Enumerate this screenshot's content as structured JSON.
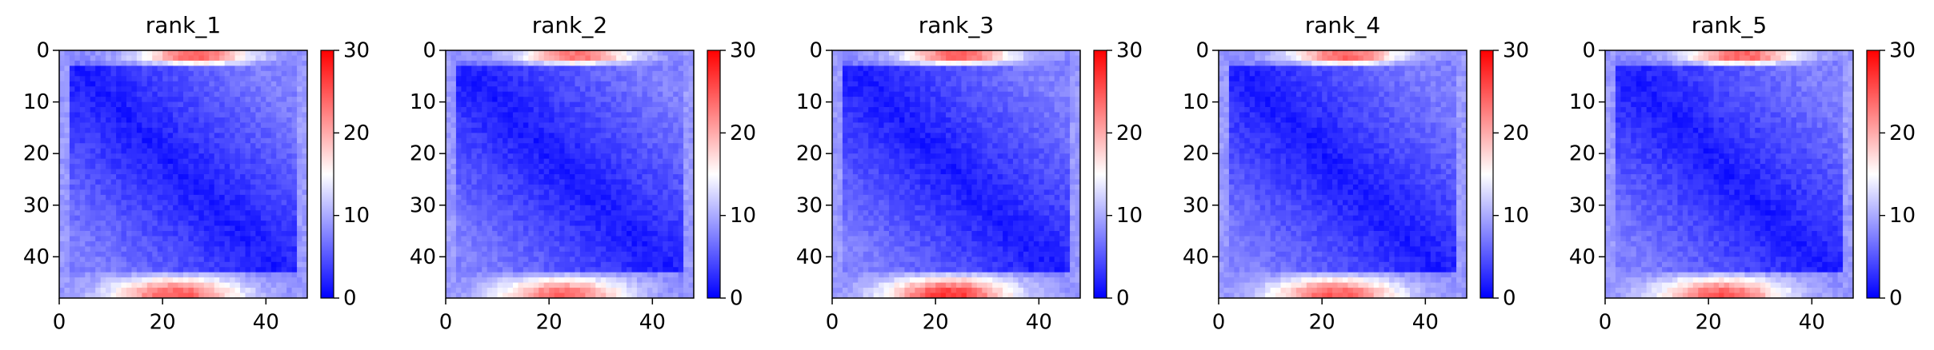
{
  "figure": {
    "background": "#ffffff"
  },
  "chart_data": [
    {
      "type": "heatmap",
      "title": "rank_1",
      "xlabel": "",
      "ylabel": "",
      "grid_size": 48,
      "x_ticks": [
        0,
        20,
        40
      ],
      "y_ticks": [
        0,
        10,
        20,
        30,
        40
      ],
      "xlim": [
        0,
        48
      ],
      "ylim": [
        48,
        0
      ],
      "colorbar": {
        "min": 0,
        "max": 30,
        "ticks": [
          0,
          10,
          20,
          30
        ]
      },
      "colormap": {
        "name": "bwr",
        "low": "#0000ff",
        "mid": "#ffffff",
        "high": "#ff0000"
      },
      "pattern": {
        "diagonal": 1.5,
        "body_max": 7.5,
        "top_edge_peak": 24,
        "top_edge_center": 26,
        "bottom_edge_peak": 25,
        "bottom_edge_center": 22
      }
    },
    {
      "type": "heatmap",
      "title": "rank_2",
      "xlabel": "",
      "ylabel": "",
      "grid_size": 48,
      "x_ticks": [
        0,
        20,
        40
      ],
      "y_ticks": [
        0,
        10,
        20,
        30,
        40
      ],
      "xlim": [
        0,
        48
      ],
      "ylim": [
        48,
        0
      ],
      "colorbar": {
        "min": 0,
        "max": 30,
        "ticks": [
          0,
          10,
          20,
          30
        ]
      },
      "colormap": {
        "name": "bwr",
        "low": "#0000ff",
        "mid": "#ffffff",
        "high": "#ff0000"
      },
      "pattern": {
        "diagonal": 1.5,
        "body_max": 7.5,
        "top_edge_peak": 23,
        "top_edge_center": 25,
        "bottom_edge_peak": 24,
        "bottom_edge_center": 22
      }
    },
    {
      "type": "heatmap",
      "title": "rank_3",
      "xlabel": "",
      "ylabel": "",
      "grid_size": 48,
      "x_ticks": [
        0,
        20,
        40
      ],
      "y_ticks": [
        0,
        10,
        20,
        30,
        40
      ],
      "xlim": [
        0,
        48
      ],
      "ylim": [
        48,
        0
      ],
      "colorbar": {
        "min": 0,
        "max": 30,
        "ticks": [
          0,
          10,
          20,
          30
        ]
      },
      "colormap": {
        "name": "bwr",
        "low": "#0000ff",
        "mid": "#ffffff",
        "high": "#ff0000"
      },
      "pattern": {
        "diagonal": 1.5,
        "body_max": 7.5,
        "top_edge_peak": 24,
        "top_edge_center": 24,
        "bottom_edge_peak": 27,
        "bottom_edge_center": 22
      }
    },
    {
      "type": "heatmap",
      "title": "rank_4",
      "xlabel": "",
      "ylabel": "",
      "grid_size": 48,
      "x_ticks": [
        0,
        20,
        40
      ],
      "y_ticks": [
        0,
        10,
        20,
        30,
        40
      ],
      "xlim": [
        0,
        48
      ],
      "ylim": [
        48,
        0
      ],
      "colorbar": {
        "min": 0,
        "max": 30,
        "ticks": [
          0,
          10,
          20,
          30
        ]
      },
      "colormap": {
        "name": "bwr",
        "low": "#0000ff",
        "mid": "#ffffff",
        "high": "#ff0000"
      },
      "pattern": {
        "diagonal": 1.5,
        "body_max": 7.5,
        "top_edge_peak": 24,
        "top_edge_center": 24,
        "bottom_edge_peak": 25,
        "bottom_edge_center": 22
      }
    },
    {
      "type": "heatmap",
      "title": "rank_5",
      "xlabel": "",
      "ylabel": "",
      "grid_size": 48,
      "x_ticks": [
        0,
        20,
        40
      ],
      "y_ticks": [
        0,
        10,
        20,
        30,
        40
      ],
      "xlim": [
        0,
        48
      ],
      "ylim": [
        48,
        0
      ],
      "colorbar": {
        "min": 0,
        "max": 30,
        "ticks": [
          0,
          10,
          20,
          30
        ]
      },
      "colormap": {
        "name": "bwr",
        "low": "#0000ff",
        "mid": "#ffffff",
        "high": "#ff0000"
      },
      "pattern": {
        "diagonal": 1.5,
        "body_max": 7.5,
        "top_edge_peak": 24,
        "top_edge_center": 26,
        "bottom_edge_peak": 25,
        "bottom_edge_center": 22
      }
    }
  ]
}
